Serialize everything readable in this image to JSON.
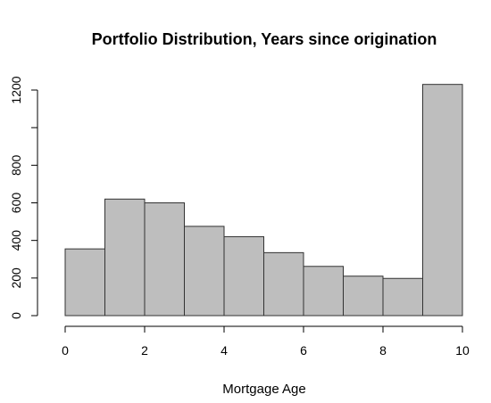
{
  "chart_data": {
    "type": "bar",
    "title": "Portfolio Distribution, Years since origination",
    "xlabel": "Mortgage Age",
    "ylabel": "",
    "bins": [
      [
        0,
        1
      ],
      [
        1,
        2
      ],
      [
        2,
        3
      ],
      [
        3,
        4
      ],
      [
        4,
        5
      ],
      [
        5,
        6
      ],
      [
        6,
        7
      ],
      [
        7,
        8
      ],
      [
        8,
        9
      ],
      [
        9,
        10
      ]
    ],
    "values": [
      355,
      620,
      600,
      475,
      420,
      335,
      262,
      210,
      198,
      1230
    ],
    "xlim": [
      0,
      10
    ],
    "ylim": [
      0,
      1200
    ],
    "xticks": [
      "0",
      "2",
      "4",
      "6",
      "8",
      "10"
    ],
    "yticks": [
      "0",
      "200",
      "400",
      "600",
      "800",
      "1200"
    ],
    "grid": false,
    "bar_color": "#bebebe"
  }
}
